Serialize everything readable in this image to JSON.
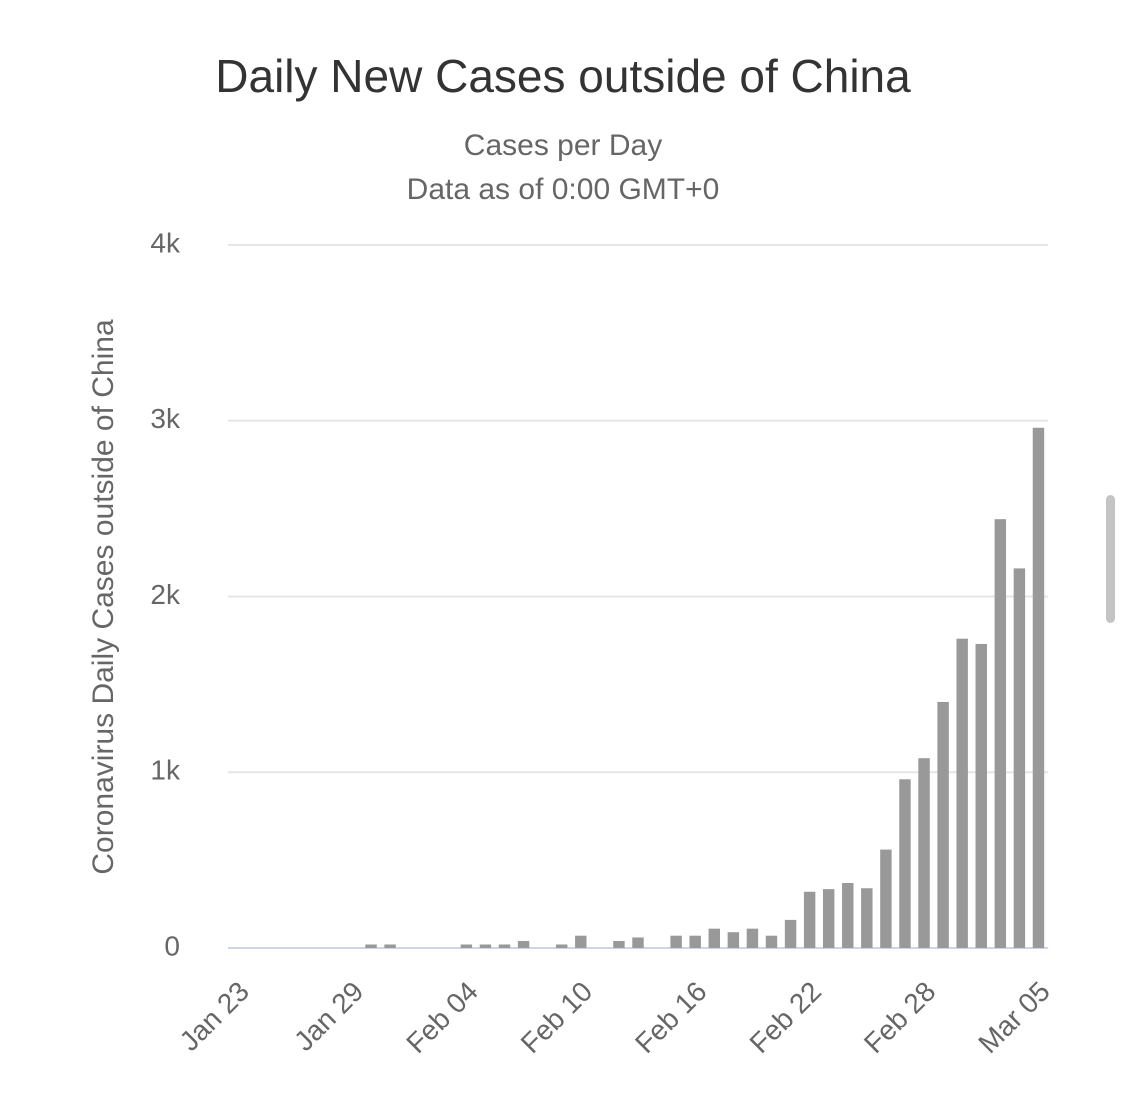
{
  "chart_data": {
    "type": "bar",
    "title": "Daily New Cases outside of China",
    "subtitle": [
      "Cases per Day",
      "Data as of 0:00 GMT+0"
    ],
    "y_label": "Coronavirus Daily Cases outside of China",
    "categories": [
      "Jan 23",
      null,
      null,
      null,
      null,
      null,
      "Jan 29",
      null,
      null,
      null,
      null,
      null,
      "Feb 04",
      null,
      null,
      null,
      null,
      null,
      "Feb 10",
      null,
      null,
      null,
      null,
      null,
      "Feb 16",
      null,
      null,
      null,
      null,
      null,
      "Feb 22",
      null,
      null,
      null,
      null,
      null,
      "Feb 28",
      null,
      null,
      null,
      null,
      null,
      "Mar 05"
    ],
    "values": [
      0,
      0,
      0,
      0,
      0,
      0,
      0,
      20,
      20,
      0,
      0,
      0,
      20,
      20,
      20,
      40,
      0,
      20,
      70,
      0,
      40,
      60,
      0,
      70,
      70,
      110,
      90,
      110,
      70,
      160,
      320,
      335,
      370,
      340,
      560,
      960,
      1080,
      1400,
      1760,
      1730,
      2440,
      2160,
      2960
    ],
    "color": "#999999",
    "ylim": [
      0,
      4000
    ],
    "yticks": [
      0,
      {
        "value": 1000,
        "label": "1k"
      },
      {
        "value": 2000,
        "label": "2k"
      },
      {
        "value": 3000,
        "label": "3k"
      },
      {
        "value": 4000,
        "label": "4k"
      }
    ],
    "grid": true
  }
}
